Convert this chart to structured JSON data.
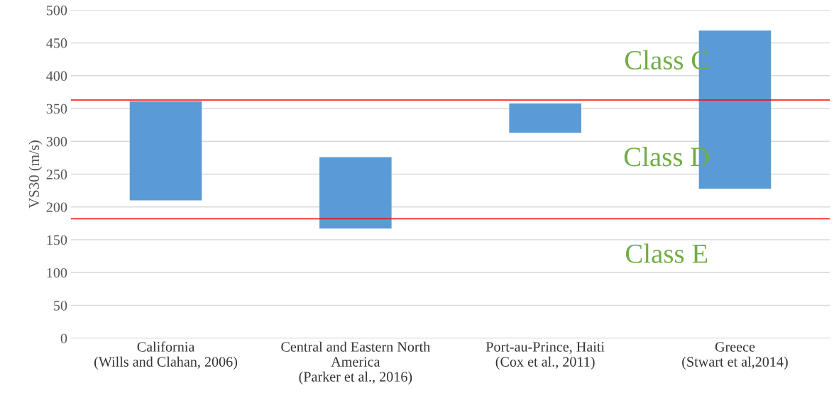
{
  "chart_data": {
    "type": "bar",
    "ylabel": "VS30 (m/s)",
    "categories": [
      "California\n(Wills and Clahan, 2006)",
      "Central and Eastern North\nAmerica\n(Parker et al., 2016)",
      "Port-au-Prince, Haiti\n(Cox et al., 2011)",
      "Greece\n(Stwart et al,2014)"
    ],
    "values": [
      151,
      109,
      45,
      241
    ],
    "base": [
      210,
      167,
      313,
      228
    ],
    "color": "#5b9bd5",
    "ylim": [
      0,
      500
    ],
    "yticks": [
      0,
      50,
      100,
      150,
      200,
      250,
      300,
      350,
      400,
      450,
      500
    ],
    "grid": "y",
    "ref_lines": [
      {
        "axis": "y",
        "value": 363,
        "color": "#ff0000"
      },
      {
        "axis": "y",
        "value": 182,
        "color": "#ff0000"
      }
    ],
    "annotations": [
      "Class C",
      "Class D",
      "Class E"
    ]
  }
}
